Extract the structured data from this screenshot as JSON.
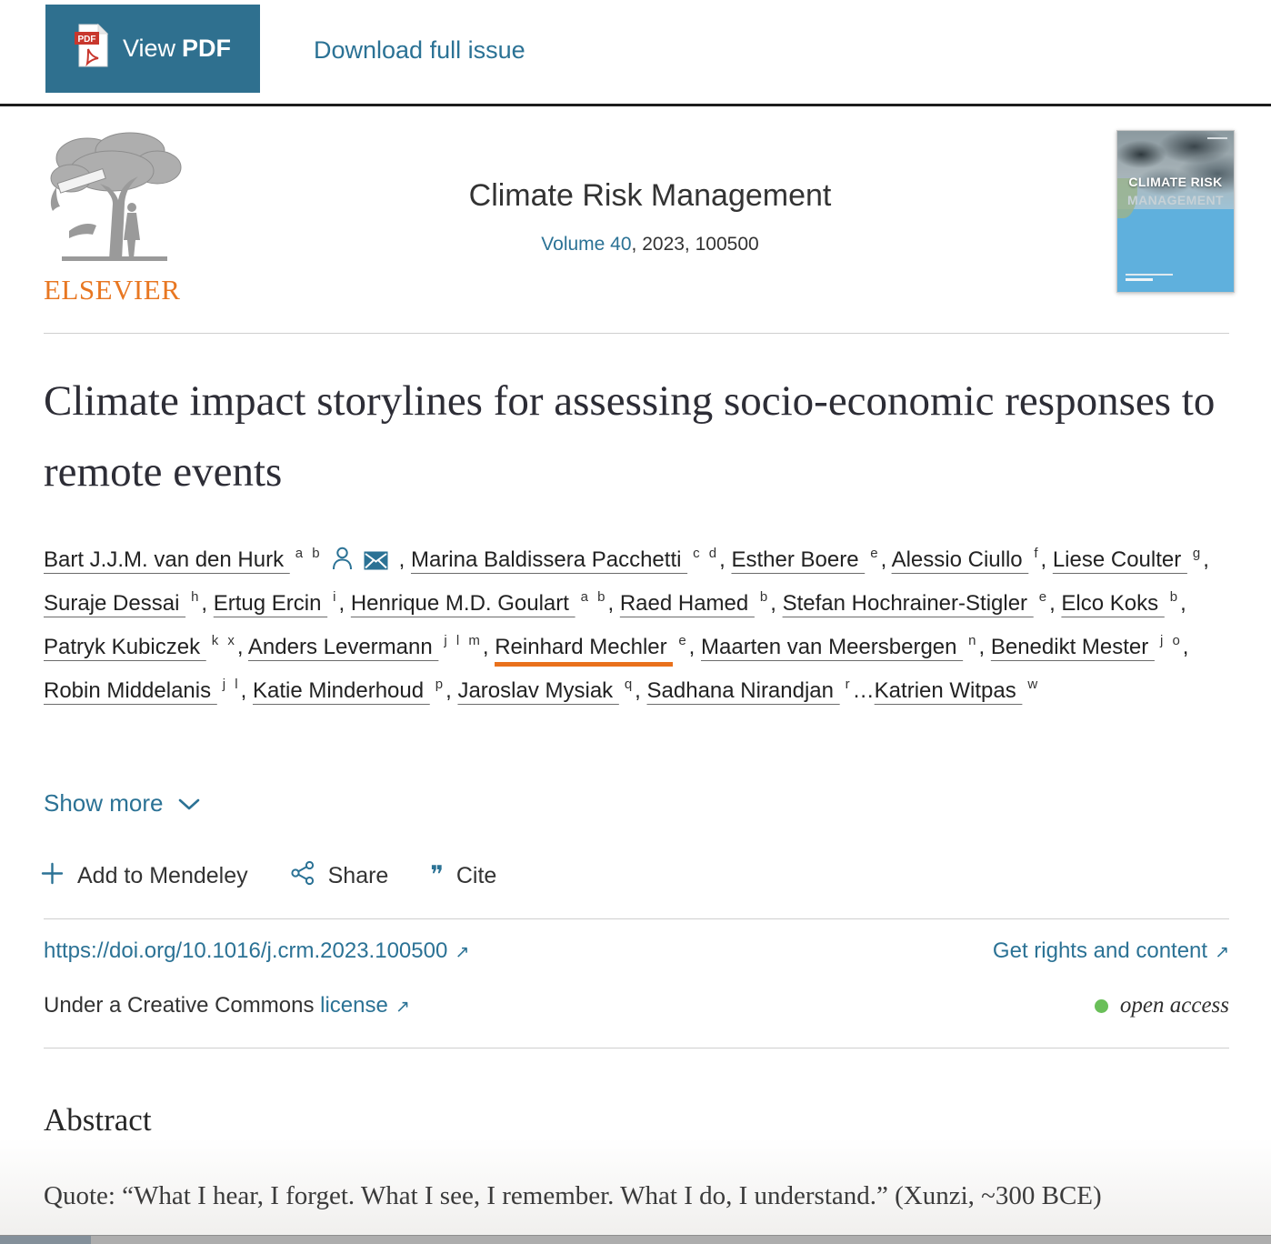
{
  "toolbar": {
    "view_pdf": {
      "view": "View",
      "pdf": "PDF",
      "icon_label": "PDF"
    },
    "download_full_issue": "Download full issue"
  },
  "header": {
    "publisher": "ELSEVIER",
    "journal_title": "Climate Risk Management",
    "volume_link": "Volume 40",
    "issue_suffix": ", 2023, 100500",
    "cover": {
      "line1": "CLIMATE RISK",
      "line2": "MANAGEMENT"
    }
  },
  "article": {
    "title": "Climate impact storylines for assessing socio-economic responses to remote events",
    "authors": [
      {
        "name": "Bart J.J.M. van den Hurk",
        "sup": "a b",
        "icons": [
          "person-icon",
          "envelope-icon"
        ],
        "sep": ", "
      },
      {
        "name": "Marina Baldissera Pacchetti",
        "sup": "c d",
        "sep": ", "
      },
      {
        "name": "Esther Boere",
        "sup": "e",
        "sep": ", "
      },
      {
        "name": "Alessio Ciullo",
        "sup": "f",
        "sep": ", "
      },
      {
        "name": "Liese Coulter",
        "sup": "g",
        "sep": ", "
      },
      {
        "name": "Suraje Dessai",
        "sup": "h",
        "sep": ", "
      },
      {
        "name": "Ertug Ercin",
        "sup": "i",
        "sep": ", "
      },
      {
        "name": "Henrique M.D. Goulart",
        "sup": "a b",
        "sep": ", "
      },
      {
        "name": "Raed Hamed",
        "sup": "b",
        "sep": ", "
      },
      {
        "name": "Stefan Hochrainer-Stigler",
        "sup": "e",
        "sep": ", "
      },
      {
        "name": "Elco Koks",
        "sup": "b",
        "sep": ", "
      },
      {
        "name": "Patryk Kubiczek",
        "sup": "k x",
        "sep": ", "
      },
      {
        "name": "Anders Levermann",
        "sup": "j l m",
        "sep": ", "
      },
      {
        "name": "Reinhard Mechler",
        "sup": "e",
        "highlight": true,
        "sep": ", "
      },
      {
        "name": "Maarten van Meersbergen",
        "sup": "n",
        "sep": ", "
      },
      {
        "name": "Benedikt Mester",
        "sup": "j o",
        "sep": ", "
      },
      {
        "name": "Robin Middelanis",
        "sup": "j l",
        "sep": ", "
      },
      {
        "name": "Katie Minderhoud",
        "sup": "p",
        "sep": ", "
      },
      {
        "name": "Jaroslav Mysiak",
        "sup": "q",
        "sep": ", "
      },
      {
        "name": "Sadhana Nirandjan",
        "sup": "r",
        "sep": "…"
      },
      {
        "name": "Katrien Witpas",
        "sup": "w",
        "sep": ""
      }
    ],
    "show_more": "Show more",
    "actions": [
      {
        "icon": "plus-icon",
        "label": "Add to Mendeley"
      },
      {
        "icon": "share-icon",
        "label": "Share"
      },
      {
        "icon": "quote-icon",
        "label": "Cite"
      }
    ]
  },
  "links": {
    "doi": "https://doi.org/10.1016/j.crm.2023.100500",
    "rights": "Get rights and content",
    "license_prefix": "Under a Creative Commons",
    "license_link": "license",
    "open_access": "open access"
  },
  "abstract": {
    "heading": "Abstract",
    "quote": "Quote: “What I hear, I forget. What I see, I remember. What I do, I understand.” (Xunzi, ~300 BCE)"
  },
  "colors": {
    "button_teal": "#2f708f",
    "link_blue": "#2b7295",
    "elsevier_orange": "#e87722",
    "highlight_orange": "#e9711c",
    "open_access_green": "#6abf59",
    "cover_blue": "#5fb0dd"
  }
}
